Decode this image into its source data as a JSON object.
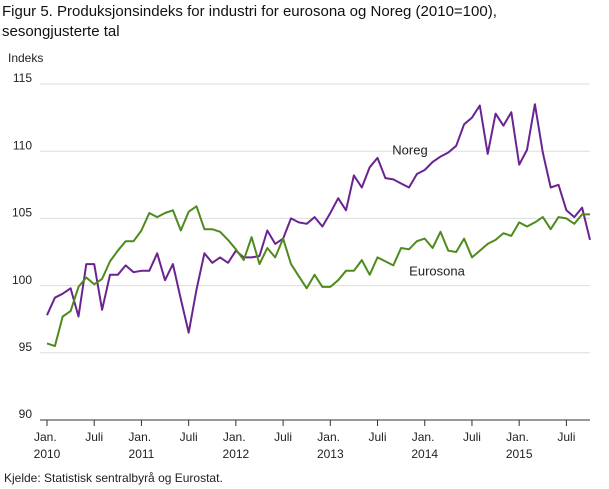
{
  "chart_data": {
    "type": "line",
    "title": "Figur 5. Produksjonsindeks for industri for eurosona og Noreg (2010=100), sesongjusterte tal",
    "y_label": "Indeks",
    "source": "Kjelde: Statistisk sentralbyrå og Eurostat.",
    "categories": [
      "Jan. 2010",
      null,
      null,
      null,
      null,
      null,
      "Juli",
      null,
      null,
      null,
      null,
      null,
      "Jan. 2011",
      null,
      null,
      null,
      null,
      null,
      "Juli",
      null,
      null,
      null,
      null,
      null,
      "Jan. 2012",
      null,
      null,
      null,
      null,
      null,
      "Juli",
      null,
      null,
      null,
      null,
      null,
      "Jan. 2013",
      null,
      null,
      null,
      null,
      null,
      "Juli",
      null,
      null,
      null,
      null,
      null,
      "Jan. 2014",
      null,
      null,
      null,
      null,
      null,
      "Juli",
      null,
      null,
      null,
      null,
      null,
      "Jan. 2015",
      null,
      null,
      null,
      null,
      null,
      "Juli",
      null,
      null,
      null
    ],
    "ylim": [
      90,
      115
    ],
    "yticks": [
      90,
      95,
      100,
      105,
      110,
      115
    ],
    "grid": true,
    "series": [
      {
        "name": "Noreg",
        "color": "#6a2491",
        "values": [
          97.8,
          99.1,
          99.4,
          99.8,
          97.7,
          101.6,
          101.6,
          98.2,
          100.8,
          100.8,
          101.5,
          101.0,
          101.1,
          101.1,
          102.4,
          100.4,
          101.6,
          99.0,
          96.5,
          99.7,
          102.4,
          101.7,
          102.1,
          101.7,
          102.6,
          102.1,
          102.1,
          102.2,
          104.1,
          103.1,
          103.5,
          105.0,
          104.7,
          104.6,
          105.1,
          104.4,
          105.4,
          106.5,
          105.6,
          108.2,
          107.3,
          108.8,
          109.5,
          108.0,
          107.9,
          107.6,
          107.3,
          108.3,
          108.6,
          109.2,
          109.6,
          109.9,
          110.4,
          112.0,
          112.5,
          113.4,
          109.8,
          112.8,
          111.9,
          112.9,
          109.0,
          110.1,
          113.5,
          109.9,
          107.3,
          107.5,
          105.6,
          105.1,
          105.8,
          103.4
        ]
      },
      {
        "name": "Eurosona",
        "color": "#4e8a1c",
        "values": [
          95.7,
          95.5,
          97.7,
          98.1,
          99.9,
          100.6,
          100.1,
          100.5,
          101.8,
          102.6,
          103.3,
          103.3,
          104.1,
          105.4,
          105.1,
          105.4,
          105.6,
          104.1,
          105.5,
          105.9,
          104.2,
          104.2,
          104.0,
          103.4,
          102.7,
          101.9,
          103.6,
          101.6,
          102.8,
          102.1,
          103.5,
          101.6,
          100.7,
          99.8,
          100.8,
          99.9,
          99.9,
          100.4,
          101.1,
          101.1,
          101.9,
          100.8,
          102.1,
          101.8,
          101.5,
          102.8,
          102.7,
          103.3,
          103.5,
          102.8,
          104.0,
          102.6,
          102.5,
          103.5,
          102.1,
          102.6,
          103.1,
          103.4,
          103.9,
          103.7,
          104.7,
          104.4,
          104.7,
          105.1,
          104.2,
          105.1,
          105.0,
          104.6,
          105.3,
          105.3
        ]
      }
    ]
  }
}
